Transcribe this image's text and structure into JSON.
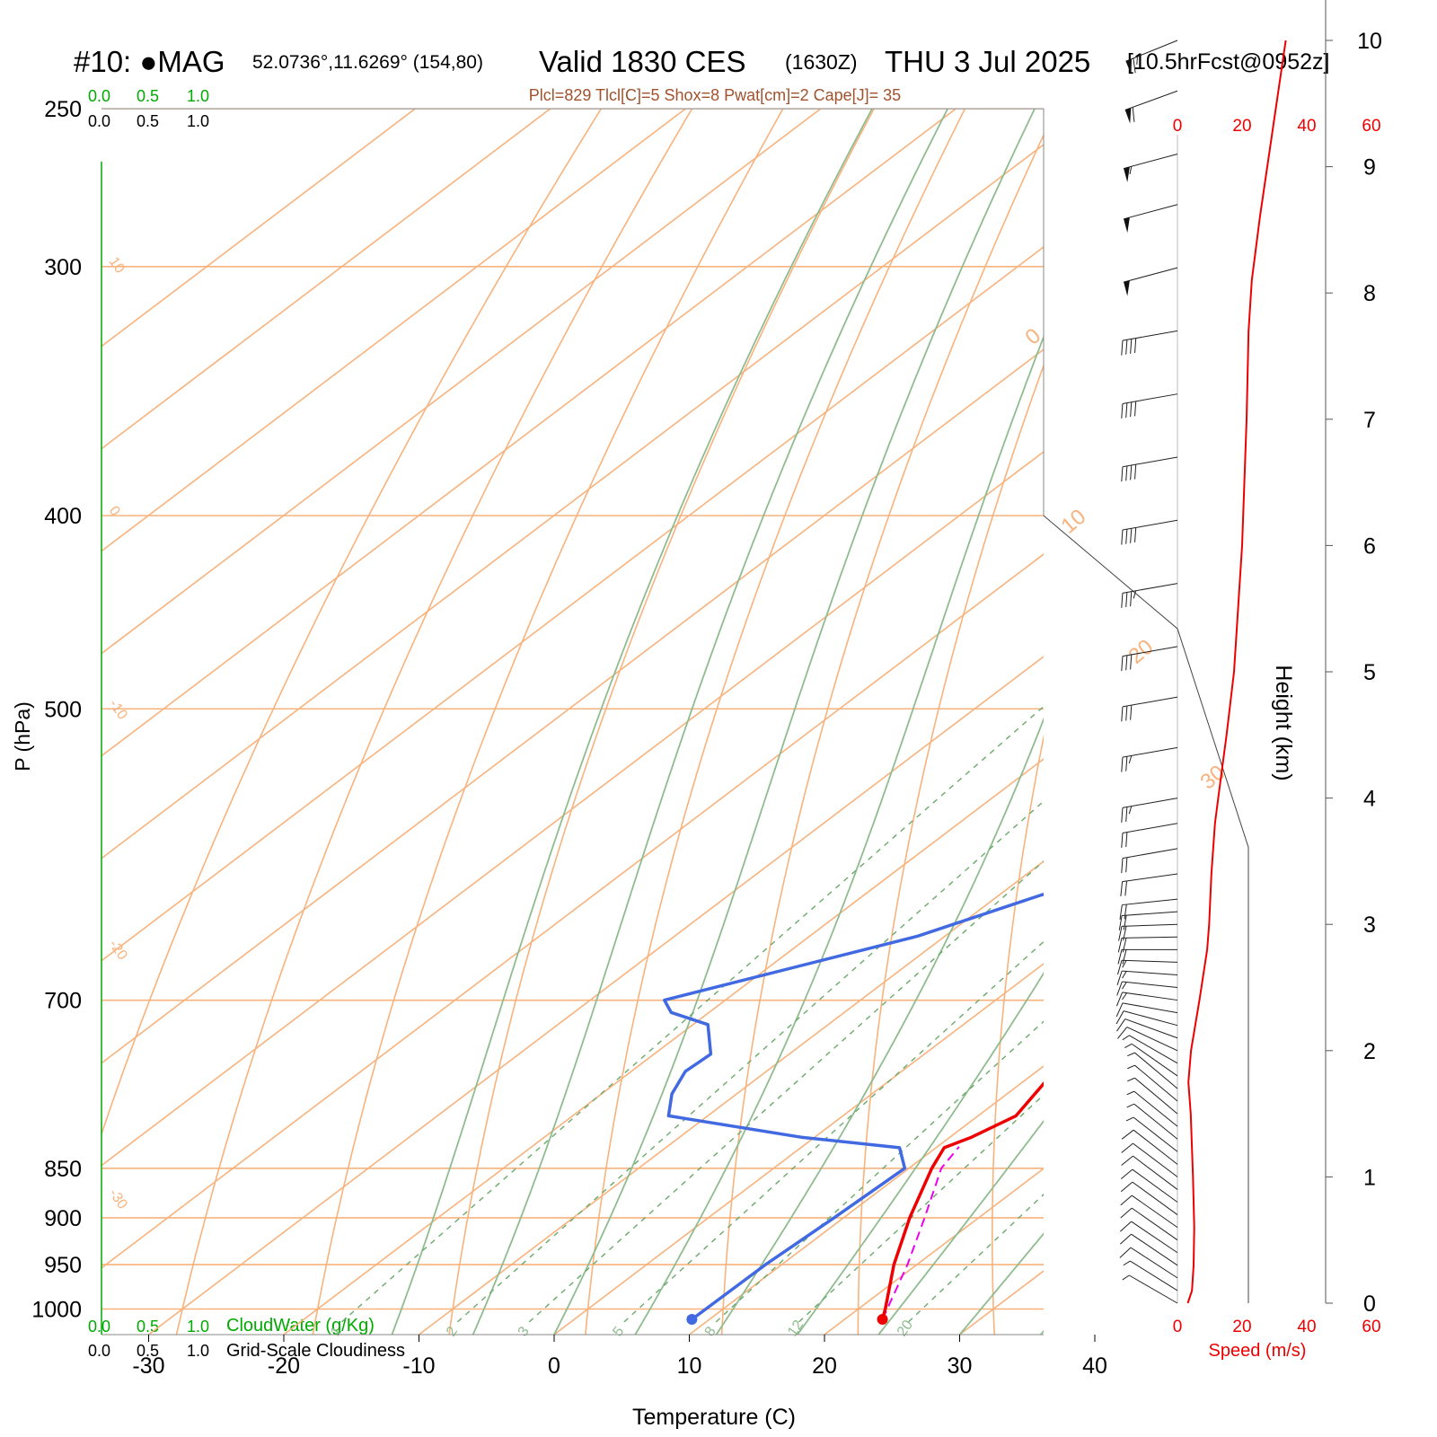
{
  "header": {
    "station": "#10: ●MAG",
    "coords": "52.0736°,11.6269° (154,80)",
    "valid_main": "Valid 1830 CES",
    "valid_utc": "(1630Z)",
    "date": "THU 3 Jul 2025",
    "forecast": "[10.5hrFcst@0952z]",
    "indices": "Plcl=829 Tlcl[C]=5 Shox=8 Pwat[cm]=2 Cape[J]= 35"
  },
  "scales": {
    "cloud_top_green": [
      "0.0",
      "0.5",
      "1.0"
    ],
    "cloud_top_black": [
      "0.0",
      "0.5",
      "1.0"
    ],
    "cloud_bottom_green": [
      "0.0",
      "0.5",
      "1.0"
    ],
    "cloud_bottom_black": [
      "0.0",
      "0.5",
      "1.0"
    ],
    "cloudwater_label": "CloudWater (g/Kg)",
    "cloudiness_label": "Grid-Scale Cloudiness",
    "speed_ticks": [
      "0",
      "20",
      "40",
      "60"
    ],
    "speed_label": "Speed (m/s)"
  },
  "isotherm_labels": [
    {
      "text": "10",
      "t": 10,
      "p": 300
    },
    {
      "text": "0",
      "t": 0,
      "p": 400
    },
    {
      "text": "-10",
      "t": -10,
      "p": 500
    },
    {
      "text": "-20",
      "t": -20,
      "p": 660
    },
    {
      "text": "-30",
      "t": -30,
      "p": 880
    }
  ],
  "dry_adiabat_labels": [
    {
      "text": "0",
      "x": 1150,
      "y": 385
    },
    {
      "text": "10",
      "x": 1190,
      "y": 595
    },
    {
      "text": "20",
      "x": 1265,
      "y": 740
    },
    {
      "text": "30",
      "x": 1345,
      "y": 880
    }
  ],
  "mixing_ratio_labels": [
    "1",
    "2",
    "3",
    "5",
    "8",
    "12",
    "20"
  ],
  "chart_data": {
    "type": "line",
    "subtype": "skew-T log-p sounding",
    "xlabel": "Temperature (C)",
    "ylabel": "P (hPa)",
    "y2label": "Height (km)",
    "x_ticks": [
      -30,
      -20,
      -10,
      0,
      10,
      20,
      30,
      40
    ],
    "p_ticks": [
      250,
      300,
      400,
      500,
      700,
      850,
      900,
      950,
      1000
    ],
    "height_ticks": [
      0,
      1,
      2,
      3,
      4,
      5,
      6,
      7,
      8,
      9,
      10
    ],
    "xlim": [
      -33,
      36
    ],
    "plim": [
      1030,
      250
    ],
    "y_scale": "log",
    "temperature": {
      "name": "Temperature",
      "color": "#ee0000",
      "points": [
        [
          1012,
          22.8
        ],
        [
          1000,
          22.0
        ],
        [
          950,
          18.3
        ],
        [
          900,
          14.9
        ],
        [
          850,
          11.7
        ],
        [
          830,
          10.6
        ],
        [
          820,
          11.6
        ],
        [
          800,
          12.8
        ],
        [
          750,
          10.9
        ],
        [
          700,
          7.4
        ],
        [
          650,
          3.3
        ],
        [
          600,
          -0.9
        ],
        [
          500,
          -9.5
        ],
        [
          450,
          -14.2
        ],
        [
          400,
          -21.0
        ],
        [
          350,
          -29.5
        ],
        [
          330,
          -33.6
        ],
        [
          300,
          -38.5
        ],
        [
          280,
          -42.2
        ],
        [
          260,
          -45.0
        ]
      ]
    },
    "dewpoint": {
      "name": "Dewpoint",
      "color": "#4169e1",
      "points": [
        [
          1012,
          8.7
        ],
        [
          950,
          8.8
        ],
        [
          900,
          9.3
        ],
        [
          850,
          9.7
        ],
        [
          830,
          7.3
        ],
        [
          820,
          -1.0
        ],
        [
          800,
          -12.9
        ],
        [
          780,
          -14.8
        ],
        [
          760,
          -16.0
        ],
        [
          745,
          -15.8
        ],
        [
          720,
          -18.9
        ],
        [
          710,
          -22.8
        ],
        [
          700,
          -24.5
        ],
        [
          650,
          -12.0
        ],
        [
          620,
          -6.9
        ],
        [
          600,
          -2.4
        ],
        [
          550,
          -6.2
        ],
        [
          510,
          -8.5
        ],
        [
          450,
          -16.2
        ],
        [
          420,
          -19.5
        ],
        [
          400,
          -21.8
        ],
        [
          370,
          -26.8
        ],
        [
          330,
          -35.7
        ],
        [
          310,
          -40.0
        ],
        [
          290,
          -45.5
        ],
        [
          260,
          -48.5
        ]
      ]
    },
    "parcel": {
      "name": "Parcel",
      "color": "#ee00ee",
      "points": [
        [
          1012,
          22.8
        ],
        [
          950,
          19.3
        ],
        [
          900,
          16.0
        ],
        [
          850,
          12.4
        ],
        [
          829,
          11.6
        ]
      ]
    },
    "wind_speed": {
      "name": "Speed (m/s)",
      "color": "#ee0000",
      "xlim": [
        0,
        60
      ],
      "points": [
        [
          0,
          3.2
        ],
        [
          0.1,
          4.5
        ],
        [
          0.3,
          5.0
        ],
        [
          0.6,
          5.2
        ],
        [
          1.0,
          4.8
        ],
        [
          1.5,
          4.1
        ],
        [
          1.75,
          3.4
        ],
        [
          2.0,
          4.2
        ],
        [
          2.4,
          6.8
        ],
        [
          2.8,
          9.2
        ],
        [
          3.0,
          9.8
        ],
        [
          3.4,
          10.5
        ],
        [
          3.8,
          11.6
        ],
        [
          4.0,
          12.6
        ],
        [
          4.5,
          15.2
        ],
        [
          5.0,
          17.5
        ],
        [
          6.0,
          20.0
        ],
        [
          7.0,
          21.4
        ],
        [
          7.7,
          22.0
        ],
        [
          8.1,
          23.0
        ],
        [
          8.6,
          25.5
        ],
        [
          9.3,
          29.5
        ],
        [
          10.0,
          33.5
        ]
      ]
    },
    "wind_barbs": [
      {
        "h": 0.0,
        "dir": 240,
        "spd": 3
      },
      {
        "h": 0.1,
        "dir": 238,
        "spd": 4
      },
      {
        "h": 0.2,
        "dir": 237,
        "spd": 5
      },
      {
        "h": 0.3,
        "dir": 236,
        "spd": 5
      },
      {
        "h": 0.4,
        "dir": 236,
        "spd": 5
      },
      {
        "h": 0.5,
        "dir": 235,
        "spd": 5
      },
      {
        "h": 0.6,
        "dir": 235,
        "spd": 5
      },
      {
        "h": 0.7,
        "dir": 234,
        "spd": 5
      },
      {
        "h": 0.8,
        "dir": 234,
        "spd": 5
      },
      {
        "h": 0.9,
        "dir": 233,
        "spd": 5
      },
      {
        "h": 1.0,
        "dir": 233,
        "spd": 5
      },
      {
        "h": 1.1,
        "dir": 232,
        "spd": 5
      },
      {
        "h": 1.2,
        "dir": 232,
        "spd": 4
      },
      {
        "h": 1.3,
        "dir": 231,
        "spd": 4
      },
      {
        "h": 1.4,
        "dir": 231,
        "spd": 4
      },
      {
        "h": 1.5,
        "dir": 230,
        "spd": 4
      },
      {
        "h": 1.6,
        "dir": 230,
        "spd": 4
      },
      {
        "h": 1.7,
        "dir": 230,
        "spd": 4
      },
      {
        "h": 1.8,
        "dir": 235,
        "spd": 4
      },
      {
        "h": 1.9,
        "dir": 240,
        "spd": 4
      },
      {
        "h": 2.0,
        "dir": 245,
        "spd": 5
      },
      {
        "h": 2.1,
        "dir": 250,
        "spd": 6
      },
      {
        "h": 2.2,
        "dir": 255,
        "spd": 7
      },
      {
        "h": 2.3,
        "dir": 260,
        "spd": 7
      },
      {
        "h": 2.4,
        "dir": 262,
        "spd": 8
      },
      {
        "h": 2.5,
        "dir": 264,
        "spd": 8
      },
      {
        "h": 2.6,
        "dir": 266,
        "spd": 9
      },
      {
        "h": 2.7,
        "dir": 268,
        "spd": 9
      },
      {
        "h": 2.8,
        "dir": 270,
        "spd": 10
      },
      {
        "h": 2.9,
        "dir": 271,
        "spd": 10
      },
      {
        "h": 3.0,
        "dir": 272,
        "spd": 10
      },
      {
        "h": 3.1,
        "dir": 274,
        "spd": 10
      },
      {
        "h": 3.2,
        "dir": 276,
        "spd": 11
      },
      {
        "h": 3.4,
        "dir": 278,
        "spd": 11
      },
      {
        "h": 3.6,
        "dir": 280,
        "spd": 12
      },
      {
        "h": 3.8,
        "dir": 280,
        "spd": 12
      },
      {
        "h": 4.0,
        "dir": 280,
        "spd": 13
      },
      {
        "h": 4.4,
        "dir": 280,
        "spd": 14
      },
      {
        "h": 4.8,
        "dir": 280,
        "spd": 15
      },
      {
        "h": 5.2,
        "dir": 280,
        "spd": 17
      },
      {
        "h": 5.7,
        "dir": 280,
        "spd": 18
      },
      {
        "h": 6.2,
        "dir": 280,
        "spd": 20
      },
      {
        "h": 6.7,
        "dir": 280,
        "spd": 21
      },
      {
        "h": 7.2,
        "dir": 280,
        "spd": 21
      },
      {
        "h": 7.7,
        "dir": 280,
        "spd": 22
      },
      {
        "h": 8.2,
        "dir": 285,
        "spd": 25
      },
      {
        "h": 8.7,
        "dir": 285,
        "spd": 27
      },
      {
        "h": 9.1,
        "dir": 285,
        "spd": 29
      },
      {
        "h": 9.6,
        "dir": 290,
        "spd": 31
      },
      {
        "h": 10.0,
        "dir": 292,
        "spd": 34
      }
    ],
    "grid": true
  }
}
